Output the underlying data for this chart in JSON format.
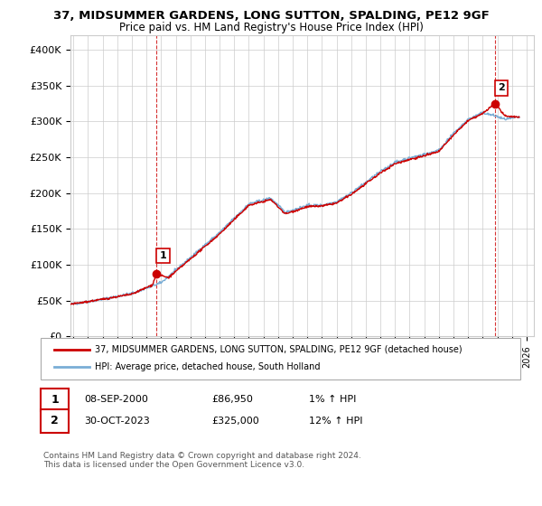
{
  "title": "37, MIDSUMMER GARDENS, LONG SUTTON, SPALDING, PE12 9GF",
  "subtitle": "Price paid vs. HM Land Registry's House Price Index (HPI)",
  "ylabel_ticks": [
    "£0",
    "£50K",
    "£100K",
    "£150K",
    "£200K",
    "£250K",
    "£300K",
    "£350K",
    "£400K"
  ],
  "ytick_values": [
    0,
    50000,
    100000,
    150000,
    200000,
    250000,
    300000,
    350000,
    400000
  ],
  "ylim": [
    0,
    420000
  ],
  "xlim_start": 1994.8,
  "xlim_end": 2026.5,
  "xtick_years": [
    1995,
    1996,
    1997,
    1998,
    1999,
    2000,
    2001,
    2002,
    2003,
    2004,
    2005,
    2006,
    2007,
    2008,
    2009,
    2010,
    2011,
    2012,
    2013,
    2014,
    2015,
    2016,
    2017,
    2018,
    2019,
    2020,
    2021,
    2022,
    2023,
    2024,
    2025,
    2026
  ],
  "sale1_x": 2000.69,
  "sale1_y": 86950,
  "sale1_label": "1",
  "sale1_date": "08-SEP-2000",
  "sale1_price": "£86,950",
  "sale1_hpi": "1% ↑ HPI",
  "sale2_x": 2023.83,
  "sale2_y": 325000,
  "sale2_label": "2",
  "sale2_date": "30-OCT-2023",
  "sale2_price": "£325,000",
  "sale2_hpi": "12% ↑ HPI",
  "line_color_red": "#cc0000",
  "line_color_blue": "#7aaed6",
  "vline_color": "#cc0000",
  "bg_color": "#ffffff",
  "grid_color": "#cccccc",
  "legend1_text": "37, MIDSUMMER GARDENS, LONG SUTTON, SPALDING, PE12 9GF (detached house)",
  "legend2_text": "HPI: Average price, detached house, South Holland",
  "footnote": "Contains HM Land Registry data © Crown copyright and database right 2024.\nThis data is licensed under the Open Government Licence v3.0."
}
